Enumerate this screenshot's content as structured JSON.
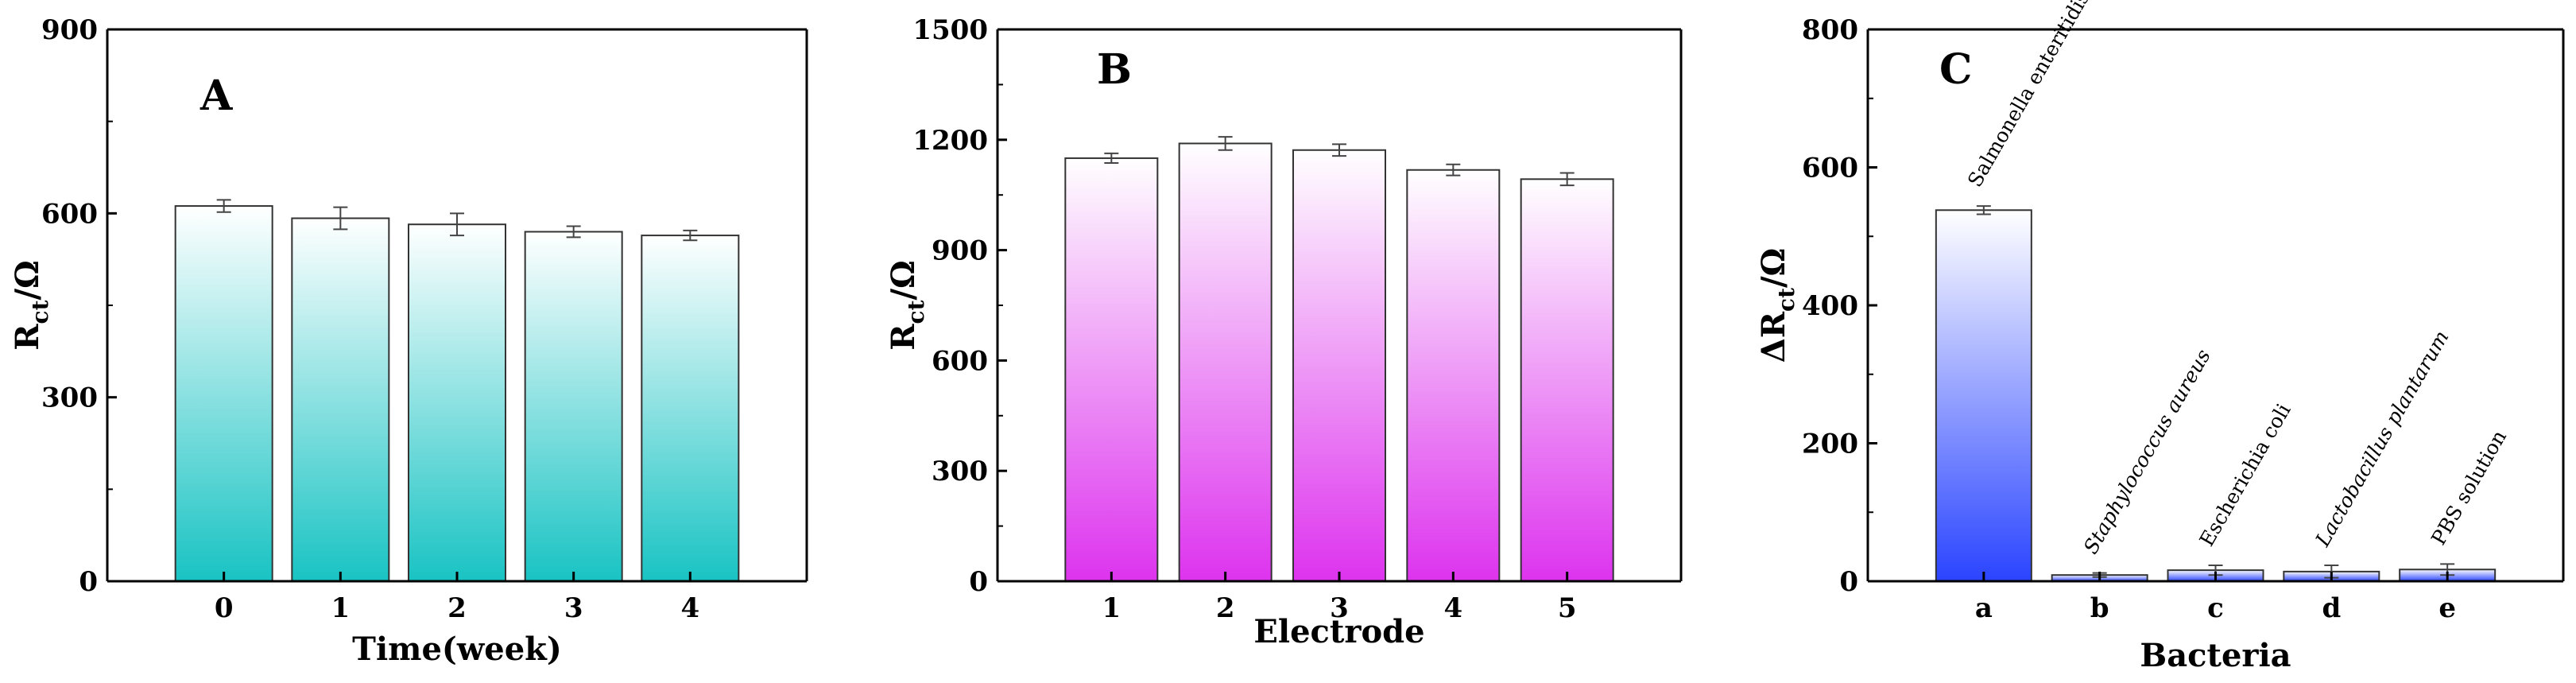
{
  "chart_data": [
    {
      "type": "bar",
      "panel_label": "A",
      "categories": [
        "0",
        "1",
        "2",
        "3",
        "4"
      ],
      "values": [
        612,
        592,
        582,
        570,
        564
      ],
      "errors": [
        10,
        18,
        18,
        9,
        8
      ],
      "ylim": [
        0,
        900
      ],
      "yticks": [
        "0",
        "300",
        "600",
        "900"
      ],
      "xlabel": "Time(week)",
      "ylabel": {
        "main": "R",
        "sub": "ct",
        "tail": "/Ω"
      },
      "bar_gradient": {
        "top": "#ffffff",
        "bottom": "#19c3c3"
      },
      "grid": false
    },
    {
      "type": "bar",
      "panel_label": "B",
      "categories": [
        "1",
        "2",
        "3",
        "4",
        "5"
      ],
      "values": [
        1150,
        1190,
        1172,
        1118,
        1093
      ],
      "errors": [
        13,
        18,
        16,
        15,
        17
      ],
      "ylim": [
        0,
        1500
      ],
      "yticks": [
        "0",
        "300",
        "600",
        "900",
        "1200",
        "1500"
      ],
      "xlabel": "Electrode",
      "ylabel": {
        "main": "R",
        "sub": "ct",
        "tail": "/Ω"
      },
      "bar_gradient": {
        "top": "#ffffff",
        "bottom": "#dd33ee"
      },
      "grid": false
    },
    {
      "type": "bar",
      "panel_label": "C",
      "categories": [
        "a",
        "b",
        "c",
        "d",
        "e"
      ],
      "values": [
        538,
        9,
        16,
        14,
        17
      ],
      "errors": [
        6,
        3,
        7,
        9,
        8
      ],
      "bar_labels": [
        "Salmonella enteritidis",
        "Staphylococcus aureus",
        "Escherichia coli",
        "Lactobacillus plantarum",
        "PBS solution"
      ],
      "bar_label_italic": [
        false,
        true,
        false,
        true,
        false
      ],
      "ylim": [
        0,
        800
      ],
      "yticks": [
        "0",
        "200",
        "400",
        "600",
        "800"
      ],
      "xlabel": "Bacteria",
      "ylabel": {
        "main": "ΔR",
        "sub": "ct",
        "tail": "/Ω"
      },
      "bar_gradient": {
        "top": "#ffffff",
        "bottom": "#2a44ff"
      },
      "grid": false
    }
  ]
}
